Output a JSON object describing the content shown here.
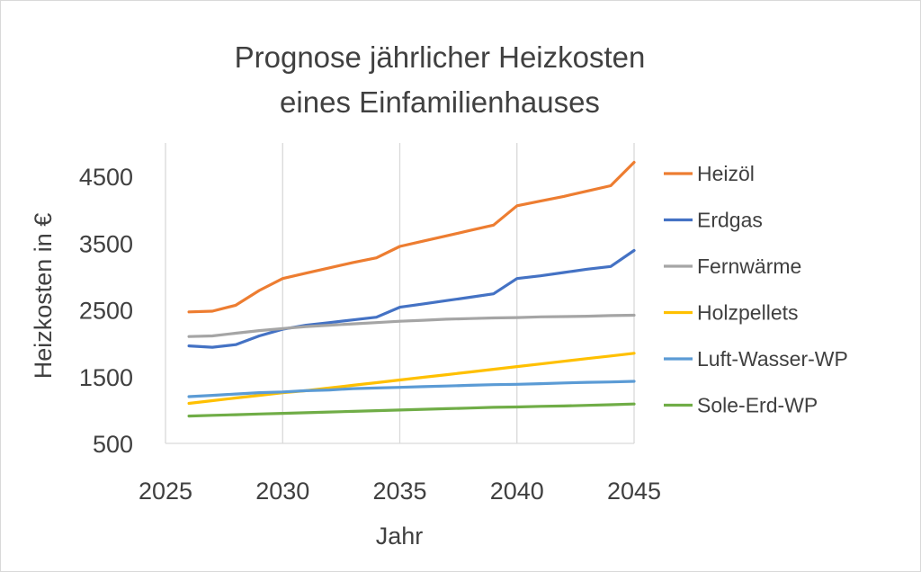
{
  "chart_data": {
    "type": "line",
    "title_lines": [
      "Prognose jährlicher Heizkosten",
      "eines Einfamilienhauses"
    ],
    "xlabel": "Jahr",
    "ylabel": "Heizkosten in €",
    "xlim": [
      2025,
      2045
    ],
    "ylim": [
      500,
      5000
    ],
    "x_ticks": [
      "2025",
      "2030",
      "2035",
      "2040",
      "2045"
    ],
    "y_ticks": [
      "500",
      "1500",
      "2500",
      "3500",
      "4500"
    ],
    "grid": "vertical",
    "legend": "right",
    "x": [
      2026,
      2027,
      2028,
      2029,
      2030,
      2031,
      2032,
      2033,
      2034,
      2035,
      2036,
      2037,
      2038,
      2039,
      2040,
      2041,
      2042,
      2043,
      2044,
      2045
    ],
    "series": [
      {
        "name": "Heizöl",
        "color": "#ED7D31",
        "values": [
          2470,
          2480,
          2570,
          2790,
          2970,
          3050,
          3130,
          3210,
          3280,
          3450,
          3530,
          3610,
          3690,
          3770,
          4060,
          4130,
          4200,
          4280,
          4360,
          4710
        ]
      },
      {
        "name": "Erdgas",
        "color": "#4472C4",
        "values": [
          1960,
          1940,
          1980,
          2110,
          2210,
          2270,
          2310,
          2350,
          2390,
          2540,
          2590,
          2640,
          2690,
          2740,
          2970,
          3010,
          3060,
          3110,
          3150,
          3390
        ]
      },
      {
        "name": "Fernwärme",
        "color": "#A5A5A5",
        "values": [
          2100,
          2110,
          2150,
          2190,
          2220,
          2250,
          2270,
          2290,
          2310,
          2330,
          2345,
          2360,
          2370,
          2380,
          2385,
          2395,
          2400,
          2405,
          2415,
          2420
        ]
      },
      {
        "name": "Holzpellets",
        "color": "#FFC000",
        "values": [
          1100,
          1140,
          1180,
          1220,
          1260,
          1290,
          1330,
          1370,
          1410,
          1450,
          1490,
          1530,
          1570,
          1610,
          1650,
          1690,
          1730,
          1770,
          1810,
          1850
        ]
      },
      {
        "name": "Luft-Wasser-WP",
        "color": "#5B9BD5",
        "values": [
          1200,
          1220,
          1240,
          1260,
          1270,
          1290,
          1300,
          1320,
          1330,
          1340,
          1350,
          1360,
          1370,
          1380,
          1385,
          1395,
          1405,
          1415,
          1420,
          1430
        ]
      },
      {
        "name": "Sole-Erd-WP",
        "color": "#70AD47",
        "values": [
          910,
          920,
          930,
          940,
          950,
          960,
          970,
          980,
          990,
          1000,
          1010,
          1020,
          1030,
          1040,
          1045,
          1055,
          1060,
          1070,
          1080,
          1090
        ]
      }
    ]
  }
}
